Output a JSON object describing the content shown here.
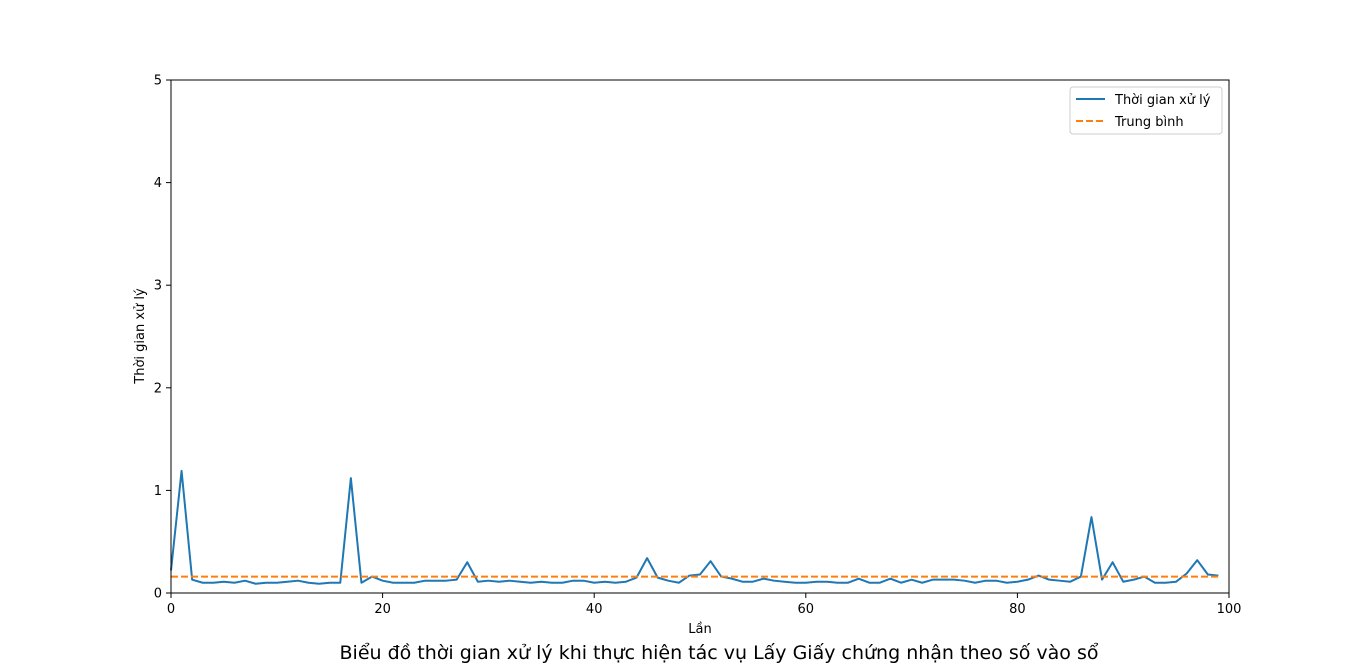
{
  "chart_data": {
    "type": "line",
    "title": "",
    "caption": "Biểu đồ thời gian xử lý khi thực hiện tác vụ Lấy Giấy chứng nhận theo số vào sổ",
    "xlabel": "Lần",
    "ylabel": "Thời gian xử lý",
    "xlim": [
      0,
      100
    ],
    "ylim": [
      0,
      5
    ],
    "xticks": [
      0,
      20,
      40,
      60,
      80,
      100
    ],
    "yticks": [
      0,
      1,
      2,
      3,
      4,
      5
    ],
    "grid": false,
    "legend_position": "top-right",
    "series": [
      {
        "name": "Thời gian xử lý",
        "color": "#1f77b4",
        "style": "solid",
        "x": [
          0,
          1,
          2,
          3,
          4,
          5,
          6,
          7,
          8,
          9,
          10,
          11,
          12,
          13,
          14,
          15,
          16,
          17,
          18,
          19,
          20,
          21,
          22,
          23,
          24,
          25,
          26,
          27,
          28,
          29,
          30,
          31,
          32,
          33,
          34,
          35,
          36,
          37,
          38,
          39,
          40,
          41,
          42,
          43,
          44,
          45,
          46,
          47,
          48,
          49,
          50,
          51,
          52,
          53,
          54,
          55,
          56,
          57,
          58,
          59,
          60,
          61,
          62,
          63,
          64,
          65,
          66,
          67,
          68,
          69,
          70,
          71,
          72,
          73,
          74,
          75,
          76,
          77,
          78,
          79,
          80,
          81,
          82,
          83,
          84,
          85,
          86,
          87,
          88,
          89,
          90,
          91,
          92,
          93,
          94,
          95,
          96,
          97,
          98,
          99
        ],
        "y": [
          0.22,
          1.19,
          0.13,
          0.1,
          0.1,
          0.11,
          0.1,
          0.12,
          0.09,
          0.1,
          0.1,
          0.11,
          0.12,
          0.1,
          0.09,
          0.1,
          0.1,
          1.12,
          0.1,
          0.16,
          0.12,
          0.1,
          0.1,
          0.1,
          0.12,
          0.12,
          0.12,
          0.13,
          0.3,
          0.11,
          0.12,
          0.11,
          0.12,
          0.11,
          0.1,
          0.11,
          0.1,
          0.1,
          0.12,
          0.12,
          0.1,
          0.11,
          0.1,
          0.11,
          0.15,
          0.34,
          0.15,
          0.12,
          0.1,
          0.17,
          0.18,
          0.31,
          0.16,
          0.14,
          0.11,
          0.11,
          0.14,
          0.12,
          0.11,
          0.1,
          0.1,
          0.11,
          0.11,
          0.1,
          0.1,
          0.14,
          0.1,
          0.1,
          0.14,
          0.1,
          0.13,
          0.1,
          0.13,
          0.13,
          0.13,
          0.12,
          0.1,
          0.12,
          0.12,
          0.1,
          0.11,
          0.13,
          0.17,
          0.13,
          0.12,
          0.11,
          0.16,
          0.74,
          0.13,
          0.3,
          0.11,
          0.13,
          0.16,
          0.1,
          0.1,
          0.11,
          0.19,
          0.32,
          0.18,
          0.17
        ]
      },
      {
        "name": "Trung bình",
        "color": "#ff7f0e",
        "style": "dashed",
        "x": [
          0,
          99
        ],
        "y": [
          0.16,
          0.16
        ]
      }
    ]
  }
}
